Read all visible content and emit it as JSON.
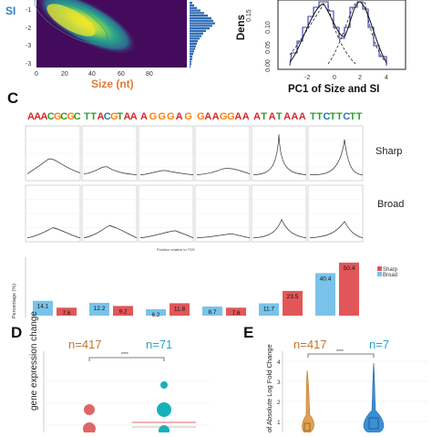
{
  "panelA": {
    "y_label": "SI",
    "x_label": "Size (nt)",
    "y_ticks": [
      "-1",
      "-2",
      "-3"
    ],
    "x_ticks": [
      "0",
      "20",
      "40",
      "60",
      "80"
    ],
    "colors": {
      "heat_bg": "#440a5c",
      "heat_mid": "#2a8c8a",
      "heat_hi": "#f3e52b",
      "hist": "#2f6db5"
    }
  },
  "panelB": {
    "y_label": "Dens",
    "y_ticks": [
      "0.15",
      "0.10",
      "0.05",
      "0.00"
    ],
    "x_ticks": [
      "-2",
      "0",
      "2",
      "4"
    ],
    "x_label": "PC1 of Size and SI"
  },
  "panelC": {
    "letter": "C",
    "motifs": [
      {
        "text": "AAACGCGC",
        "colors": [
          "#d62728",
          "#d62728",
          "#d62728",
          "#2ca02c",
          "#ff7f0e",
          "#2ca02c",
          "#ff7f0e",
          "#2ca02c"
        ]
      },
      {
        "text": "TTACGTAA",
        "colors": [
          "#2ca02c",
          "#2ca02c",
          "#d62728",
          "#1f77b4",
          "#ff7f0e",
          "#2ca02c",
          "#d62728",
          "#d62728"
        ]
      },
      {
        "text": "AGGGAG",
        "colors": [
          "#d62728",
          "#ff7f0e",
          "#ff7f0e",
          "#ff7f0e",
          "#d62728",
          "#ff7f0e"
        ]
      },
      {
        "text": "GAAGGAA",
        "colors": [
          "#ff7f0e",
          "#d62728",
          "#d62728",
          "#ff7f0e",
          "#ff7f0e",
          "#d62728",
          "#d62728"
        ]
      },
      {
        "text": "ATATAAA",
        "colors": [
          "#d62728",
          "#2ca02c",
          "#d62728",
          "#2ca02c",
          "#d62728",
          "#d62728",
          "#d62728"
        ]
      },
      {
        "text": "TTCTTCTT",
        "colors": [
          "#2ca02c",
          "#2ca02c",
          "#1f77b4",
          "#2ca02c",
          "#2ca02c",
          "#1f77b4",
          "#2ca02c",
          "#2ca02c"
        ]
      }
    ],
    "row_labels": [
      "Sharp",
      "Broad"
    ],
    "x_axis_label": "Position relative to TSS",
    "y_axis_label": "Percentage (%)",
    "bar_values": [
      {
        "broad": 14.1,
        "sharp": 7.6
      },
      {
        "broad": 12.2,
        "sharp": 9.2
      },
      {
        "broad": 6.2,
        "sharp": 11.8
      },
      {
        "broad": 8.7,
        "sharp": 7.6
      },
      {
        "broad": 11.7,
        "sharp": 23.5
      },
      {
        "broad": 40.4,
        "sharp": 50.4
      }
    ],
    "legend": [
      "Sharp",
      "Broad"
    ],
    "colors": {
      "sharp": "#e15759",
      "broad": "#79c3ea"
    }
  },
  "panelD": {
    "letter": "D",
    "n_left": "n=417",
    "n_right": "n=71",
    "sig": "****",
    "y_label": "gene expression change",
    "colors": {
      "left": "#e06666",
      "right": "#16b2b8",
      "n_left": "#c0762f",
      "n_right": "#29a3c7"
    }
  },
  "panelE": {
    "letter": "E",
    "n_left": "n=417",
    "n_right": "n=7",
    "sig": "****",
    "y_label": "of Absolute Log Fold Change",
    "y_ticks": [
      "4",
      "3",
      "2",
      "1"
    ],
    "colors": {
      "left": "#e0a050",
      "right": "#3a8fd6",
      "n_left": "#c0762f",
      "n_right": "#29a3c7"
    }
  }
}
